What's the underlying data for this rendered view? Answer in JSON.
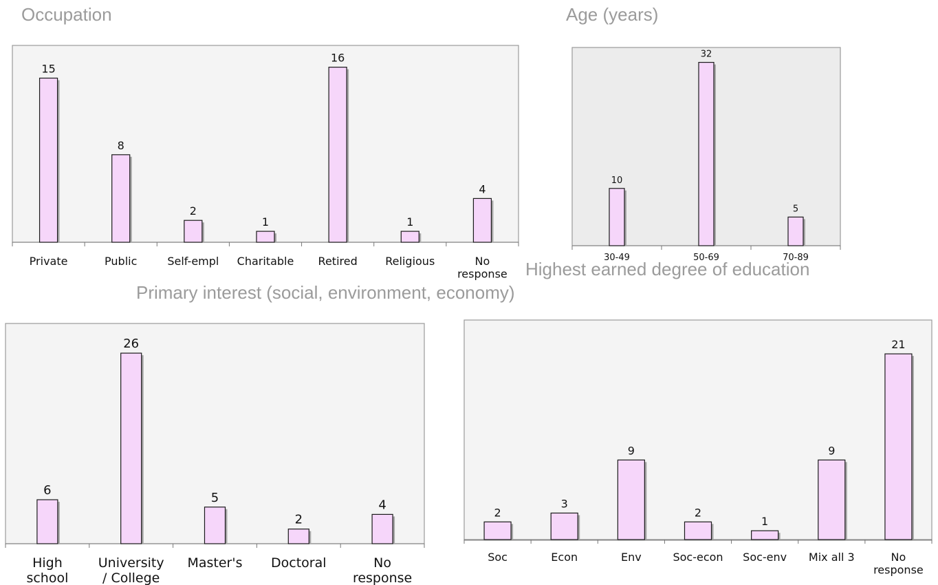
{
  "titles": {
    "occupation": "Occupation",
    "age": "Age (years)",
    "education": "Highest earned degree of education",
    "interest": "Primary interest (social, environment, economy)"
  },
  "colors": {
    "bar_fill": "#f6d6fa",
    "bar_stroke": "#1a1a1a",
    "bar_shadow": "#a6a6a6",
    "plot_bg_light": "#f4f4f4",
    "plot_bg_dark": "#ececec",
    "title": "#9b9b9b"
  },
  "chart_data": [
    {
      "id": "occupation",
      "type": "bar",
      "title": "Occupation",
      "categories": [
        "Private",
        "Public",
        "Self-empl",
        "Charitable",
        "Retired",
        "Religious",
        "No response"
      ],
      "values": [
        15,
        8,
        2,
        1,
        16,
        1,
        4
      ],
      "grid": false,
      "data_labels": true
    },
    {
      "id": "age",
      "type": "bar",
      "title": "Age (years)",
      "categories": [
        "30-49",
        "50-69",
        "70-89"
      ],
      "values": [
        10,
        32,
        5
      ],
      "grid": false,
      "data_labels": true
    },
    {
      "id": "education",
      "type": "bar",
      "title": "Highest earned degree of education",
      "categories": [
        "High school",
        "University / College",
        "Master's",
        "Doctoral",
        "No response"
      ],
      "values": [
        6,
        26,
        5,
        2,
        4
      ],
      "grid": false,
      "data_labels": true
    },
    {
      "id": "interest",
      "type": "bar",
      "title": "Primary interest (social, environment, economy)",
      "categories": [
        "Soc",
        "Econ",
        "Env",
        "Soc-econ",
        "Soc-env",
        "Mix all 3",
        "No response"
      ],
      "values": [
        2,
        3,
        9,
        2,
        1,
        9,
        21
      ],
      "grid": false,
      "data_labels": true
    }
  ]
}
